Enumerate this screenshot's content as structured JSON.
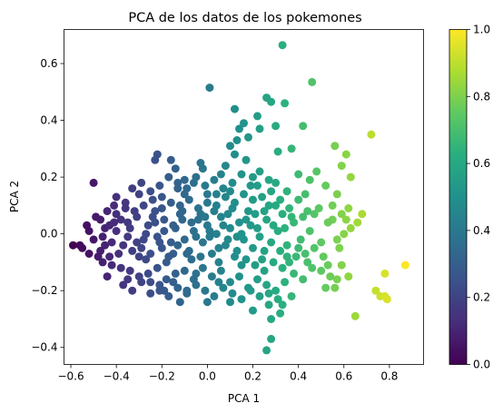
{
  "chart_data": {
    "type": "scatter",
    "title": "PCA de los datos de los pokemones",
    "xlabel": "PCA 1",
    "ylabel": "PCA 2",
    "xlim": [
      -0.63,
      0.95
    ],
    "ylim": [
      -0.46,
      0.72
    ],
    "xticks": [
      -0.6,
      -0.4,
      -0.2,
      0.0,
      0.2,
      0.4,
      0.6,
      0.8
    ],
    "xtick_labels": [
      "−0.6",
      "−0.4",
      "−0.2",
      "0.0",
      "0.2",
      "0.4",
      "0.6",
      "0.8"
    ],
    "yticks": [
      -0.4,
      -0.2,
      0.0,
      0.2,
      0.4,
      0.6
    ],
    "ytick_labels": [
      "−0.4",
      "−0.2",
      "0.0",
      "0.2",
      "0.4",
      "0.6"
    ],
    "grid": false,
    "colormap": "viridis",
    "color_value": "normalized PCA 1",
    "colorbar": {
      "range": [
        0.0,
        1.0
      ],
      "ticks": [
        0.0,
        0.2,
        0.4,
        0.6,
        0.8,
        1.0
      ],
      "tick_labels": [
        "0.0",
        "0.2",
        "0.4",
        "0.6",
        "0.8",
        "1.0"
      ]
    },
    "point_color_min": "#440154",
    "point_color_max": "#fde725",
    "points": [
      [
        0.33,
        0.665
      ],
      [
        0.01,
        0.515
      ],
      [
        0.46,
        0.535
      ],
      [
        0.12,
        0.44
      ],
      [
        0.26,
        0.48
      ],
      [
        0.28,
        0.465
      ],
      [
        0.34,
        0.46
      ],
      [
        0.22,
        0.415
      ],
      [
        0.3,
        0.38
      ],
      [
        0.42,
        0.38
      ],
      [
        0.16,
        0.39
      ],
      [
        0.23,
        0.37
      ],
      [
        0.14,
        0.37
      ],
      [
        0.18,
        0.34
      ],
      [
        0.13,
        0.33
      ],
      [
        0.1,
        0.31
      ],
      [
        0.37,
        0.3
      ],
      [
        0.56,
        0.31
      ],
      [
        0.31,
        0.29
      ],
      [
        0.48,
        0.22
      ],
      [
        0.72,
        0.35
      ],
      [
        0.61,
        0.28
      ],
      [
        0.59,
        0.24
      ],
      [
        0.63,
        0.2
      ],
      [
        0.57,
        0.14
      ],
      [
        0.4,
        0.21
      ],
      [
        0.45,
        0.19
      ],
      [
        0.52,
        0.17
      ],
      [
        0.55,
        0.05
      ],
      [
        0.59,
        0.07
      ],
      [
        0.61,
        0.05
      ],
      [
        0.63,
        0.02
      ],
      [
        0.6,
        0.0
      ],
      [
        0.57,
        -0.02
      ],
      [
        0.53,
        0.04
      ],
      [
        0.5,
        -0.03
      ],
      [
        0.47,
        0.07
      ],
      [
        0.44,
        0.08
      ],
      [
        0.42,
        0.06
      ],
      [
        0.78,
        -0.14
      ],
      [
        0.74,
        -0.2
      ],
      [
        0.76,
        -0.22
      ],
      [
        0.78,
        -0.22
      ],
      [
        0.79,
        -0.23
      ],
      [
        0.87,
        -0.11
      ],
      [
        0.65,
        -0.29
      ],
      [
        0.57,
        -0.16
      ],
      [
        0.56,
        -0.19
      ],
      [
        0.59,
        -0.11
      ],
      [
        0.62,
        -0.15
      ],
      [
        0.54,
        -0.15
      ],
      [
        0.52,
        -0.19
      ],
      [
        0.5,
        -0.13
      ],
      [
        0.37,
        -0.22
      ],
      [
        0.33,
        -0.25
      ],
      [
        0.27,
        -0.25
      ],
      [
        0.28,
        -0.37
      ],
      [
        0.26,
        -0.41
      ],
      [
        0.1,
        -0.24
      ],
      [
        -0.09,
        -0.2
      ],
      [
        -0.19,
        -0.2
      ],
      [
        -0.21,
        -0.2
      ],
      [
        -0.56,
        -0.04
      ],
      [
        -0.59,
        -0.04
      ],
      [
        -0.52,
        0.01
      ],
      [
        -0.47,
        0.05
      ],
      [
        -0.45,
        0.02
      ],
      [
        -0.5,
        0.18
      ],
      [
        -0.41,
        0.1
      ],
      [
        -0.36,
        0.11
      ],
      [
        -0.22,
        0.28
      ],
      [
        -0.23,
        0.26
      ],
      [
        -0.14,
        0.23
      ],
      [
        -0.13,
        0.16
      ],
      [
        -0.02,
        0.23
      ],
      [
        -0.1,
        0.19
      ],
      [
        -0.06,
        0.18
      ],
      [
        0.04,
        0.14
      ],
      [
        0.06,
        0.21
      ],
      [
        0.17,
        0.26
      ],
      [
        0.2,
        0.2
      ],
      [
        0.22,
        0.17
      ],
      [
        -0.55,
        -0.05
      ],
      [
        -0.52,
        -0.07
      ],
      [
        -0.48,
        -0.08
      ],
      [
        -0.45,
        -0.04
      ],
      [
        -0.42,
        -0.03
      ],
      [
        -0.4,
        0.01
      ],
      [
        -0.38,
        0.05
      ],
      [
        -0.35,
        -0.01
      ],
      [
        -0.33,
        -0.06
      ],
      [
        -0.3,
        -0.08
      ],
      [
        -0.28,
        -0.02
      ],
      [
        -0.26,
        0.03
      ],
      [
        -0.24,
        0.06
      ],
      [
        -0.22,
        -0.01
      ],
      [
        -0.2,
        -0.05
      ],
      [
        -0.18,
        -0.1
      ],
      [
        -0.16,
        -0.03
      ],
      [
        -0.14,
        0.02
      ],
      [
        -0.12,
        0.07
      ],
      [
        -0.1,
        -0.02
      ],
      [
        -0.08,
        -0.06
      ],
      [
        -0.06,
        0.01
      ],
      [
        -0.04,
        0.05
      ],
      [
        -0.02,
        -0.03
      ],
      [
        0.0,
        0.03
      ],
      [
        0.02,
        -0.07
      ],
      [
        0.04,
        0.0
      ],
      [
        0.06,
        0.06
      ],
      [
        0.08,
        -0.04
      ],
      [
        0.1,
        0.02
      ],
      [
        0.12,
        -0.08
      ],
      [
        0.14,
        0.04
      ],
      [
        0.16,
        -0.02
      ],
      [
        0.18,
        0.08
      ],
      [
        0.2,
        -0.05
      ],
      [
        0.22,
        0.02
      ],
      [
        0.24,
        -0.09
      ],
      [
        0.26,
        0.05
      ],
      [
        0.28,
        -0.03
      ],
      [
        0.3,
        0.1
      ],
      [
        0.32,
        -0.06
      ],
      [
        0.34,
        0.02
      ],
      [
        0.36,
        -0.1
      ],
      [
        0.38,
        0.04
      ],
      [
        0.4,
        -0.05
      ],
      [
        -0.46,
        -0.1
      ],
      [
        -0.42,
        -0.11
      ],
      [
        -0.38,
        -0.12
      ],
      [
        -0.34,
        -0.13
      ],
      [
        -0.3,
        -0.15
      ],
      [
        -0.26,
        -0.14
      ],
      [
        -0.22,
        -0.12
      ],
      [
        -0.18,
        -0.16
      ],
      [
        -0.14,
        -0.14
      ],
      [
        -0.1,
        -0.13
      ],
      [
        -0.06,
        -0.16
      ],
      [
        -0.02,
        -0.12
      ],
      [
        0.02,
        -0.15
      ],
      [
        0.06,
        -0.13
      ],
      [
        0.1,
        -0.17
      ],
      [
        0.14,
        -0.15
      ],
      [
        0.18,
        -0.19
      ],
      [
        0.22,
        -0.16
      ],
      [
        0.26,
        -0.18
      ],
      [
        0.3,
        -0.2
      ],
      [
        0.34,
        -0.17
      ],
      [
        0.38,
        -0.14
      ],
      [
        0.42,
        -0.16
      ],
      [
        0.46,
        -0.12
      ],
      [
        -0.44,
        0.08
      ],
      [
        -0.4,
        0.07
      ],
      [
        -0.36,
        0.09
      ],
      [
        -0.32,
        0.08
      ],
      [
        -0.28,
        0.1
      ],
      [
        -0.24,
        0.12
      ],
      [
        -0.2,
        0.09
      ],
      [
        -0.16,
        0.11
      ],
      [
        -0.12,
        0.1
      ],
      [
        -0.08,
        0.12
      ],
      [
        -0.04,
        0.09
      ],
      [
        0.0,
        0.11
      ],
      [
        0.04,
        0.1
      ],
      [
        0.08,
        0.13
      ],
      [
        0.12,
        0.11
      ],
      [
        0.16,
        0.14
      ],
      [
        0.2,
        0.12
      ],
      [
        0.24,
        0.13
      ],
      [
        0.28,
        0.15
      ],
      [
        0.32,
        0.12
      ],
      [
        0.36,
        0.09
      ],
      [
        -0.5,
        -0.02
      ],
      [
        -0.47,
        -0.06
      ],
      [
        -0.43,
        0.03
      ],
      [
        -0.39,
        -0.07
      ],
      [
        -0.35,
        0.04
      ],
      [
        -0.31,
        -0.03
      ],
      [
        -0.27,
        -0.09
      ],
      [
        -0.23,
        0.04
      ],
      [
        -0.19,
        0.01
      ],
      [
        -0.15,
        -0.07
      ],
      [
        -0.11,
        0.05
      ],
      [
        -0.07,
        -0.09
      ],
      [
        -0.03,
        0.07
      ],
      [
        0.01,
        -0.01
      ],
      [
        0.05,
        -0.1
      ],
      [
        0.09,
        0.07
      ],
      [
        0.13,
        -0.01
      ],
      [
        0.17,
        0.05
      ],
      [
        0.21,
        -0.11
      ],
      [
        0.25,
        0.08
      ],
      [
        0.29,
        0.03
      ],
      [
        0.33,
        -0.12
      ],
      [
        0.37,
        0.06
      ],
      [
        0.41,
        -0.02
      ],
      [
        0.45,
        0.01
      ],
      [
        -0.33,
        0.16
      ],
      [
        -0.29,
        0.18
      ],
      [
        -0.25,
        0.15
      ],
      [
        -0.21,
        0.17
      ],
      [
        -0.17,
        0.2
      ],
      [
        -0.13,
        0.18
      ],
      [
        -0.09,
        0.16
      ],
      [
        -0.05,
        0.2
      ],
      [
        -0.01,
        0.17
      ],
      [
        0.03,
        0.19
      ],
      [
        0.07,
        0.16
      ],
      [
        0.11,
        0.18
      ],
      [
        0.15,
        0.21
      ],
      [
        0.19,
        0.17
      ],
      [
        0.23,
        0.22
      ],
      [
        0.27,
        0.19
      ],
      [
        -0.37,
        -0.18
      ],
      [
        -0.33,
        -0.2
      ],
      [
        -0.29,
        -0.17
      ],
      [
        -0.25,
        -0.21
      ],
      [
        -0.21,
        -0.18
      ],
      [
        -0.17,
        -0.22
      ],
      [
        -0.13,
        -0.19
      ],
      [
        -0.09,
        -0.21
      ],
      [
        -0.05,
        -0.18
      ],
      [
        -0.01,
        -0.2
      ],
      [
        0.03,
        -0.22
      ],
      [
        0.07,
        -0.19
      ],
      [
        0.11,
        -0.21
      ],
      [
        0.15,
        -0.23
      ],
      [
        0.19,
        -0.2
      ],
      [
        0.23,
        -0.22
      ],
      [
        0.27,
        -0.21
      ],
      [
        0.31,
        -0.23
      ],
      [
        -0.53,
        0.03
      ],
      [
        -0.49,
        0.06
      ],
      [
        -0.46,
        -0.01
      ],
      [
        -0.43,
        -0.08
      ],
      [
        -0.41,
        0.04
      ],
      [
        -0.37,
        -0.04
      ],
      [
        -0.34,
        0.02
      ],
      [
        -0.31,
        0.06
      ],
      [
        -0.29,
        -0.05
      ],
      [
        -0.27,
        0.0
      ],
      [
        -0.25,
        -0.07
      ],
      [
        -0.23,
        0.08
      ],
      [
        -0.21,
        -0.03
      ],
      [
        -0.19,
        0.05
      ],
      [
        -0.17,
        -0.08
      ],
      [
        -0.15,
        0.03
      ],
      [
        -0.13,
        -0.04
      ],
      [
        -0.11,
        0.08
      ],
      [
        -0.09,
        -0.07
      ],
      [
        -0.07,
        0.04
      ],
      [
        -0.05,
        -0.01
      ],
      [
        -0.03,
        -0.08
      ],
      [
        -0.01,
        0.06
      ],
      [
        0.01,
        0.01
      ],
      [
        0.03,
        0.08
      ],
      [
        0.05,
        -0.05
      ],
      [
        0.07,
        0.03
      ],
      [
        0.09,
        -0.02
      ],
      [
        0.11,
        0.09
      ],
      [
        0.13,
        -0.06
      ],
      [
        0.15,
        0.0
      ],
      [
        0.17,
        -0.09
      ],
      [
        0.19,
        0.03
      ],
      [
        0.21,
        0.07
      ],
      [
        0.23,
        -0.01
      ],
      [
        0.25,
        -0.06
      ],
      [
        0.27,
        0.1
      ],
      [
        0.29,
        -0.1
      ],
      [
        0.31,
        0.01
      ],
      [
        0.33,
        0.07
      ],
      [
        0.35,
        -0.04
      ],
      [
        0.39,
        -0.08
      ],
      [
        0.43,
        -0.07
      ],
      [
        0.47,
        -0.05
      ],
      [
        0.49,
        0.09
      ],
      [
        0.51,
        -0.08
      ],
      [
        0.53,
        -0.11
      ],
      [
        0.55,
        0.1
      ],
      [
        0.58,
        -0.05
      ],
      [
        0.62,
        0.09
      ],
      [
        0.66,
        0.04
      ],
      [
        0.68,
        0.07
      ],
      [
        -0.4,
        0.13
      ],
      [
        -0.3,
        0.14
      ],
      [
        -0.2,
        0.13
      ],
      [
        -0.1,
        0.14
      ],
      [
        0.0,
        0.14
      ],
      [
        0.1,
        0.15
      ],
      [
        -0.44,
        -0.15
      ],
      [
        -0.35,
        -0.16
      ],
      [
        -0.25,
        -0.17
      ],
      [
        -0.15,
        -0.17
      ],
      [
        -0.05,
        -0.14
      ],
      [
        0.05,
        -0.17
      ],
      [
        0.15,
        -0.11
      ],
      [
        0.25,
        -0.13
      ],
      [
        0.35,
        -0.08
      ],
      [
        0.44,
        -0.1
      ],
      [
        0.4,
        0.12
      ],
      [
        0.35,
        0.15
      ],
      [
        0.3,
        0.18
      ],
      [
        0.08,
        0.24
      ],
      [
        -0.03,
        0.25
      ],
      [
        -0.16,
        0.26
      ],
      [
        0.43,
        0.14
      ],
      [
        0.12,
        0.28
      ],
      [
        0.28,
        -0.3
      ],
      [
        0.32,
        -0.28
      ],
      [
        0.2,
        -0.27
      ],
      [
        -0.12,
        -0.24
      ],
      [
        0.0,
        -0.24
      ]
    ]
  }
}
